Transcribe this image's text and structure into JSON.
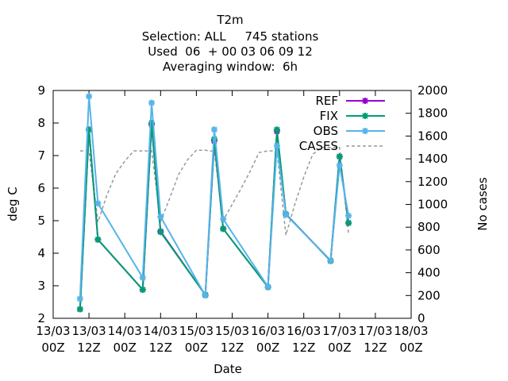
{
  "chart_data": {
    "type": "line",
    "title_lines": [
      "T2m",
      "Selection: ALL     745 stations",
      "Used  06  + 00 03 06 09 12",
      "Averaging window:  6h"
    ],
    "xlabel": "Date",
    "ylabel": "deg C",
    "y2label": "No cases",
    "xlim": [
      0,
      120
    ],
    "ylim": [
      2,
      9
    ],
    "y2lim": [
      0,
      2000
    ],
    "x_ticks": [
      {
        "x": 0,
        "label": [
          "13/03",
          "00Z"
        ]
      },
      {
        "x": 12,
        "label": [
          "13/03",
          "12Z"
        ]
      },
      {
        "x": 24,
        "label": [
          "14/03",
          "00Z"
        ]
      },
      {
        "x": 36,
        "label": [
          "14/03",
          "12Z"
        ]
      },
      {
        "x": 48,
        "label": [
          "15/03",
          "00Z"
        ]
      },
      {
        "x": 60,
        "label": [
          "15/03",
          "12Z"
        ]
      },
      {
        "x": 72,
        "label": [
          "16/03",
          "00Z"
        ]
      },
      {
        "x": 84,
        "label": [
          "16/03",
          "12Z"
        ]
      },
      {
        "x": 96,
        "label": [
          "17/03",
          "00Z"
        ]
      },
      {
        "x": 108,
        "label": [
          "17/03",
          "12Z"
        ]
      },
      {
        "x": 120,
        "label": [
          "18/03",
          "00Z"
        ]
      }
    ],
    "y_ticks": [
      2,
      3,
      4,
      5,
      6,
      7,
      8,
      9
    ],
    "y2_ticks": [
      0,
      200,
      400,
      600,
      800,
      1000,
      1200,
      1400,
      1600,
      1800,
      2000
    ],
    "grid": false,
    "legend_position": "top-right",
    "series": [
      {
        "name": "REF",
        "color": "#9400d3",
        "marker": "star",
        "axis": "left",
        "points": [
          [
            9,
            2.28
          ],
          [
            12,
            7.8
          ],
          [
            15,
            4.42
          ],
          [
            30,
            2.88
          ],
          [
            33,
            7.95
          ],
          [
            36,
            4.67
          ],
          [
            51,
            2.72
          ],
          [
            54,
            7.45
          ],
          [
            57,
            4.75
          ],
          [
            72,
            2.96
          ],
          [
            75,
            7.75
          ],
          [
            78,
            5.2
          ],
          [
            93,
            3.77
          ],
          [
            96,
            6.97
          ],
          [
            99,
            4.93
          ]
        ]
      },
      {
        "name": "FIX",
        "color": "#009e73",
        "marker": "star",
        "axis": "left",
        "points": [
          [
            9,
            2.28
          ],
          [
            12,
            7.8
          ],
          [
            15,
            4.42
          ],
          [
            30,
            2.88
          ],
          [
            33,
            8.0
          ],
          [
            36,
            4.65
          ],
          [
            51,
            2.72
          ],
          [
            54,
            7.5
          ],
          [
            57,
            4.75
          ],
          [
            72,
            2.96
          ],
          [
            75,
            7.8
          ],
          [
            78,
            5.2
          ],
          [
            93,
            3.76
          ],
          [
            96,
            6.97
          ],
          [
            99,
            4.93
          ]
        ]
      },
      {
        "name": "OBS",
        "color": "#56b4e9",
        "marker": "star",
        "axis": "left",
        "points": [
          [
            9,
            2.6
          ],
          [
            12,
            8.82
          ],
          [
            15,
            5.53
          ],
          [
            30,
            3.25
          ],
          [
            33,
            8.62
          ],
          [
            36,
            5.12
          ],
          [
            51,
            2.7
          ],
          [
            54,
            7.8
          ],
          [
            57,
            5.05
          ],
          [
            72,
            2.97
          ],
          [
            75,
            7.3
          ],
          [
            78,
            5.18
          ],
          [
            93,
            3.78
          ],
          [
            96,
            6.7
          ],
          [
            99,
            5.15
          ]
        ]
      },
      {
        "name": "CASES",
        "color": "#999999",
        "marker": "none",
        "dashed": true,
        "axis": "right",
        "points": [
          [
            9,
            1470
          ],
          [
            12,
            1470
          ],
          [
            15,
            845
          ],
          [
            18,
            1080
          ],
          [
            21,
            1270
          ],
          [
            24,
            1380
          ],
          [
            27,
            1470
          ],
          [
            30,
            1470
          ],
          [
            33,
            1470
          ],
          [
            36,
            850
          ],
          [
            39,
            1050
          ],
          [
            42,
            1260
          ],
          [
            45,
            1390
          ],
          [
            48,
            1475
          ],
          [
            51,
            1475
          ],
          [
            54,
            1465
          ],
          [
            57,
            860
          ],
          [
            60,
            1000
          ],
          [
            63,
            1140
          ],
          [
            66,
            1290
          ],
          [
            69,
            1455
          ],
          [
            72,
            1470
          ],
          [
            75,
            1470
          ],
          [
            78,
            730
          ],
          [
            81,
            1000
          ],
          [
            84,
            1240
          ],
          [
            87,
            1440
          ],
          [
            90,
            1500
          ],
          [
            93,
            1500
          ],
          [
            96,
            1500
          ],
          [
            99,
            740
          ]
        ]
      }
    ]
  }
}
